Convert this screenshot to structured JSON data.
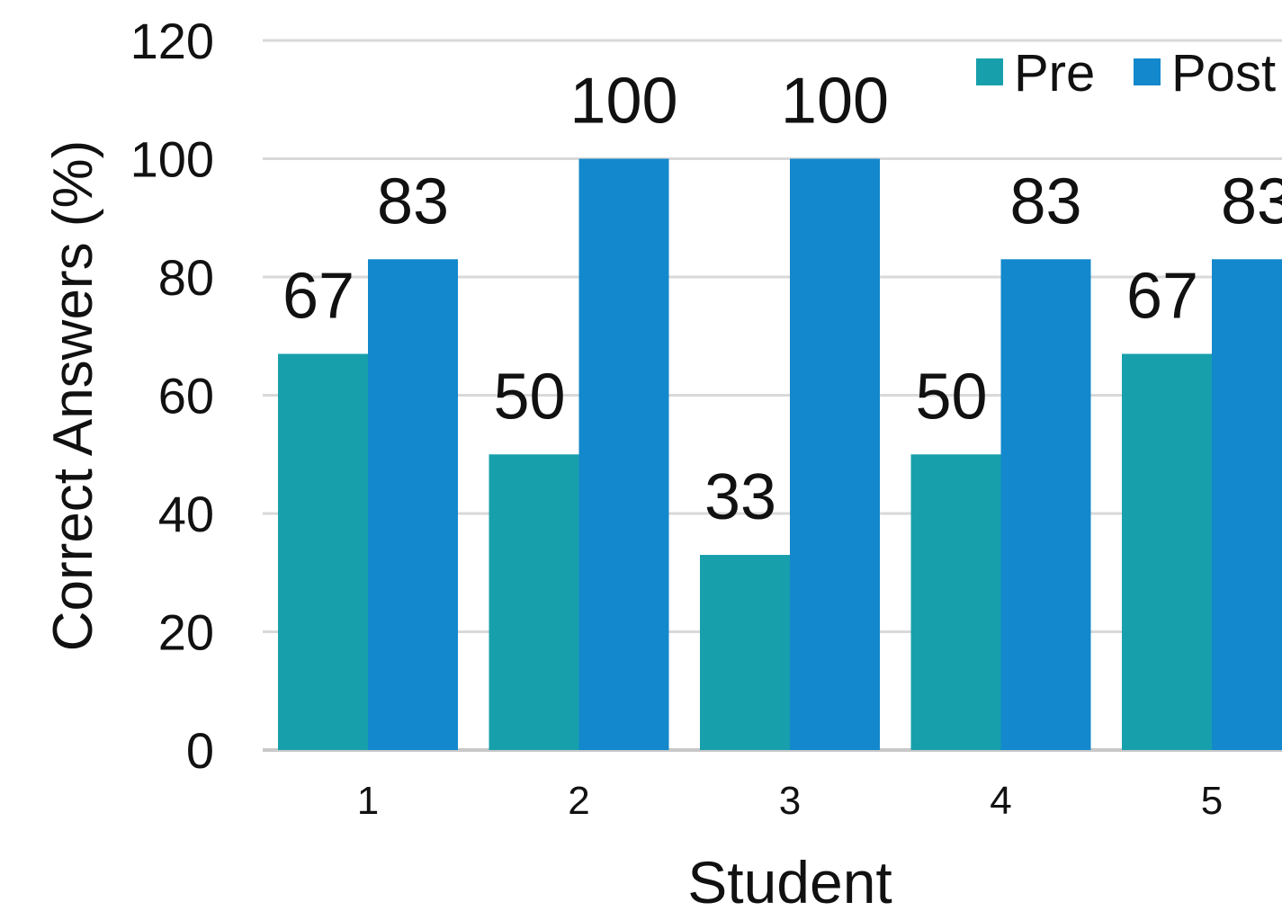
{
  "chart_data": {
    "type": "bar",
    "title": "",
    "xlabel": "Student",
    "ylabel": "Correct  Answers (%)",
    "categories": [
      "1",
      "2",
      "3",
      "4",
      "5"
    ],
    "series": [
      {
        "name": "Pre",
        "color": "#17a0ac",
        "values": [
          67,
          50,
          33,
          50,
          67
        ]
      },
      {
        "name": "Post",
        "color": "#1388cc",
        "values": [
          83,
          100,
          100,
          83,
          83
        ]
      }
    ],
    "ylim": [
      0,
      120
    ],
    "yticks": [
      0,
      20,
      40,
      60,
      80,
      100,
      120
    ],
    "grid": true,
    "data_labels": true,
    "legend_position": "top-right"
  }
}
